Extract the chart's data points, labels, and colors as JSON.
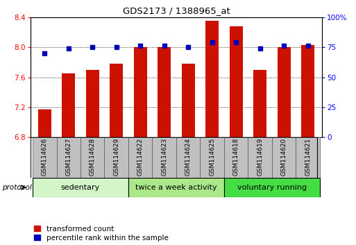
{
  "title": "GDS2173 / 1388965_at",
  "samples": [
    "GSM114626",
    "GSM114627",
    "GSM114628",
    "GSM114629",
    "GSM114622",
    "GSM114623",
    "GSM114624",
    "GSM114625",
    "GSM114618",
    "GSM114619",
    "GSM114620",
    "GSM114621"
  ],
  "transformed_count": [
    7.17,
    7.65,
    7.7,
    7.78,
    8.0,
    8.0,
    7.78,
    8.35,
    8.28,
    7.7,
    8.0,
    8.03
  ],
  "percentile_rank": [
    70,
    74,
    75,
    75,
    76,
    76,
    75,
    79,
    79,
    74,
    76,
    76
  ],
  "ylim_left": [
    6.8,
    8.4
  ],
  "ylim_right": [
    0,
    100
  ],
  "yticks_left": [
    6.8,
    7.2,
    7.6,
    8.0,
    8.4
  ],
  "yticks_right": [
    0,
    25,
    50,
    75,
    100
  ],
  "ytick_right_labels": [
    "0",
    "25",
    "50",
    "75",
    "100%"
  ],
  "gridlines": [
    7.2,
    7.6,
    8.0
  ],
  "groups": [
    {
      "label": "sedentary",
      "start": 0,
      "end": 4,
      "color": "#d4f5c8"
    },
    {
      "label": "twice a week activity",
      "start": 4,
      "end": 8,
      "color": "#aae88a"
    },
    {
      "label": "voluntary running",
      "start": 8,
      "end": 12,
      "color": "#44dd44"
    }
  ],
  "bar_color": "#cc1100",
  "dot_color": "#0000bb",
  "bar_width": 0.55,
  "background_color": "#ffffff",
  "sample_box_color": "#c0c0c0",
  "sample_box_edge": "#555555",
  "legend_items": [
    {
      "label": "transformed count",
      "color": "#cc1100"
    },
    {
      "label": "percentile rank within the sample",
      "color": "#0000bb"
    }
  ]
}
